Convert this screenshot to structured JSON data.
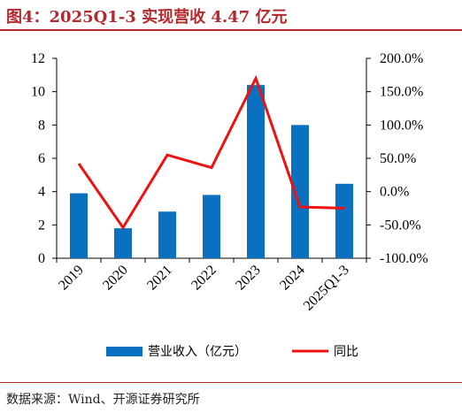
{
  "page": {
    "title": "图4：2025Q1-3 实现营收 4.47 亿元",
    "source": "数据来源：Wind、开源证券研究所"
  },
  "colors": {
    "title": "#b3282d",
    "bars": "#0a70c0",
    "line": "#ee1111",
    "axis": "#000000"
  },
  "chart_data": {
    "type": "bar",
    "title": "2025Q1-3 实现营收 4.47 亿元",
    "categories": [
      "2019",
      "2020",
      "2021",
      "2022",
      "2023",
      "2024",
      "2025Q1-3"
    ],
    "series": [
      {
        "name": "营业收入（亿元）",
        "type": "bar",
        "axis": "left",
        "values": [
          3.9,
          1.8,
          2.8,
          3.8,
          10.4,
          8.0,
          4.47
        ]
      },
      {
        "name": "同比",
        "type": "line",
        "axis": "right",
        "unit": "%",
        "values": [
          42.0,
          -54.0,
          55.0,
          36.0,
          170.0,
          -23.0,
          -25.0
        ]
      }
    ],
    "yaxis_left": {
      "ylim": [
        0,
        12
      ],
      "ticks": [
        "0",
        "2",
        "4",
        "6",
        "8",
        "10",
        "12"
      ]
    },
    "yaxis_right": {
      "ylim": [
        -100,
        200
      ],
      "ticks": [
        "-100.0%",
        "-50.0%",
        "0.0%",
        "50.0%",
        "100.0%",
        "150.0%",
        "200.0%"
      ]
    },
    "legend": {
      "position": "bottom",
      "entries": [
        "营业收入（亿元）",
        "同比"
      ]
    },
    "grid": false
  }
}
